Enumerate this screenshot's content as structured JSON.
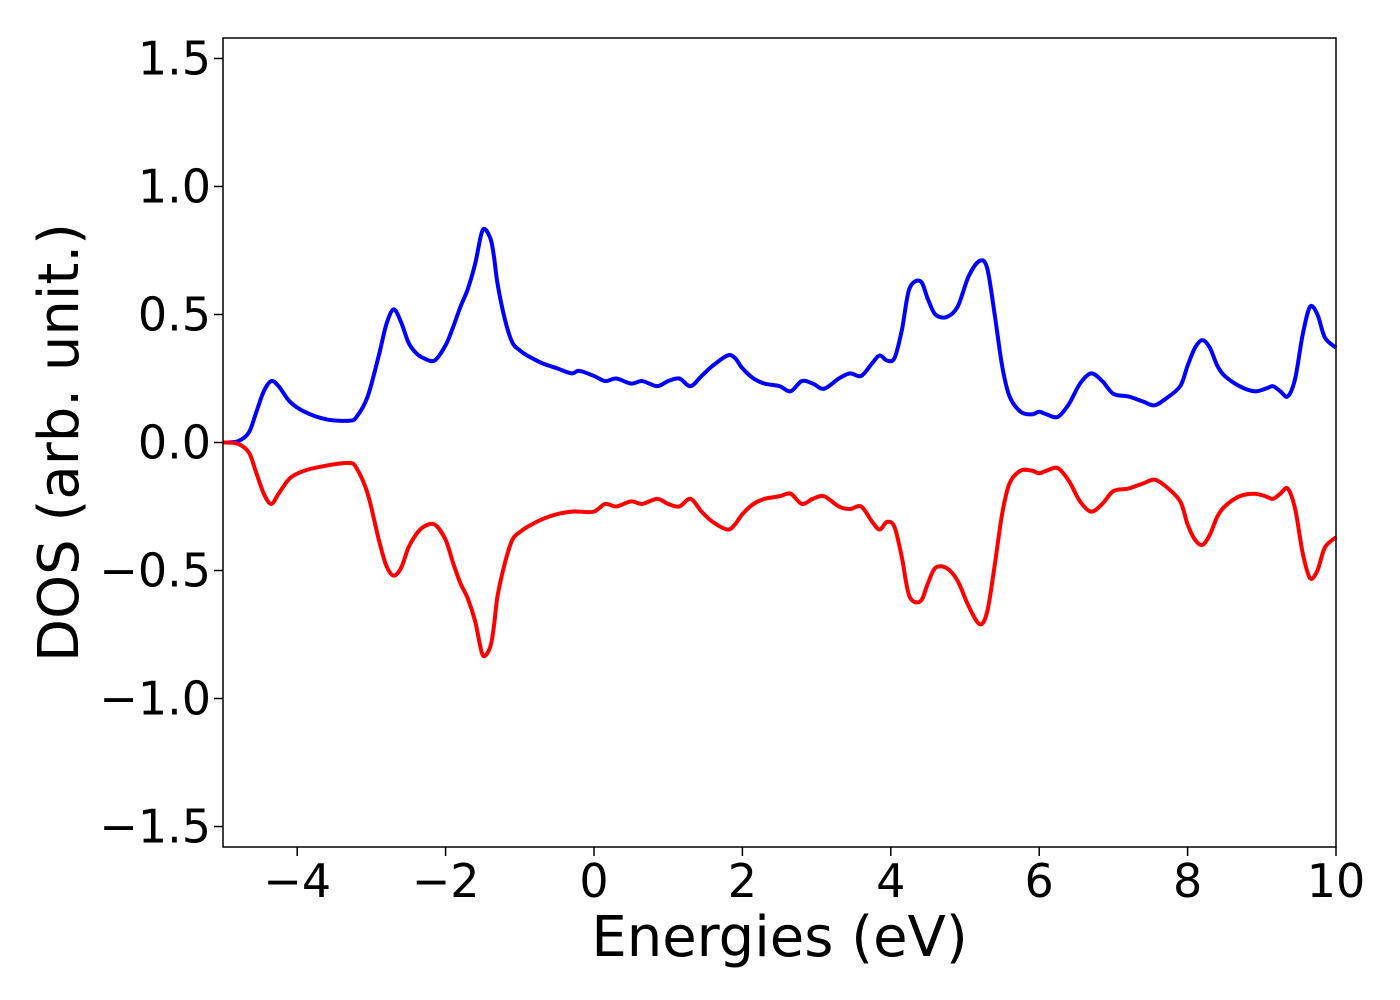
{
  "chart_data": {
    "type": "line",
    "xlabel": "Energies (eV)",
    "ylabel": "DOS (arb. unit.)",
    "xlim": [
      -5,
      10
    ],
    "ylim": [
      -1.58,
      1.58
    ],
    "grid": false,
    "xticks": [
      -4,
      -2,
      0,
      2,
      4,
      6,
      8,
      10
    ],
    "xtick_labels": [
      "−4",
      "−2",
      "0",
      "2",
      "4",
      "6",
      "8",
      "10"
    ],
    "yticks": [
      1.5,
      1.0,
      0.5,
      0.0,
      -0.5,
      -1.0,
      -1.5
    ],
    "ytick_labels": [
      "1.5",
      "1.0",
      "0.5",
      "0.0",
      "−0.5",
      "−1.0",
      "−1.5"
    ],
    "series": [
      {
        "color": "#0000ff",
        "x": [
          -5.0,
          -4.8,
          -4.65,
          -4.55,
          -4.45,
          -4.35,
          -4.25,
          -4.1,
          -3.9,
          -3.6,
          -3.3,
          -3.2,
          -3.05,
          -2.9,
          -2.8,
          -2.7,
          -2.6,
          -2.5,
          -2.4,
          -2.3,
          -2.15,
          -2.0,
          -1.9,
          -1.8,
          -1.7,
          -1.6,
          -1.5,
          -1.4,
          -1.35,
          -1.3,
          -1.2,
          -1.1,
          -1.0,
          -0.9,
          -0.7,
          -0.5,
          -0.3,
          -0.2,
          0.0,
          0.15,
          0.3,
          0.5,
          0.65,
          0.85,
          1.0,
          1.15,
          1.3,
          1.45,
          1.6,
          1.8,
          1.9,
          2.0,
          2.15,
          2.3,
          2.5,
          2.65,
          2.8,
          2.95,
          3.1,
          3.3,
          3.45,
          3.6,
          3.75,
          3.85,
          3.95,
          4.05,
          4.15,
          4.25,
          4.4,
          4.5,
          4.6,
          4.75,
          4.9,
          5.05,
          5.2,
          5.3,
          5.4,
          5.5,
          5.6,
          5.75,
          5.9,
          6.0,
          6.1,
          6.25,
          6.4,
          6.55,
          6.7,
          6.85,
          7.0,
          7.2,
          7.4,
          7.55,
          7.7,
          7.9,
          8.0,
          8.1,
          8.2,
          8.3,
          8.4,
          8.5,
          8.7,
          8.9,
          9.05,
          9.15,
          9.25,
          9.35,
          9.45,
          9.55,
          9.65,
          9.75,
          9.85,
          10.0
        ],
        "y": [
          0.0,
          0.005,
          0.04,
          0.12,
          0.2,
          0.24,
          0.22,
          0.16,
          0.12,
          0.09,
          0.085,
          0.1,
          0.18,
          0.34,
          0.46,
          0.52,
          0.47,
          0.39,
          0.35,
          0.33,
          0.32,
          0.38,
          0.45,
          0.53,
          0.6,
          0.7,
          0.83,
          0.8,
          0.73,
          0.62,
          0.48,
          0.39,
          0.36,
          0.34,
          0.31,
          0.29,
          0.27,
          0.28,
          0.26,
          0.24,
          0.25,
          0.23,
          0.24,
          0.22,
          0.24,
          0.25,
          0.22,
          0.26,
          0.3,
          0.34,
          0.33,
          0.29,
          0.25,
          0.23,
          0.22,
          0.2,
          0.24,
          0.23,
          0.21,
          0.25,
          0.27,
          0.26,
          0.31,
          0.34,
          0.32,
          0.33,
          0.44,
          0.6,
          0.63,
          0.56,
          0.5,
          0.49,
          0.53,
          0.65,
          0.71,
          0.68,
          0.5,
          0.3,
          0.18,
          0.12,
          0.11,
          0.12,
          0.11,
          0.1,
          0.15,
          0.23,
          0.27,
          0.24,
          0.19,
          0.18,
          0.16,
          0.145,
          0.17,
          0.22,
          0.3,
          0.37,
          0.4,
          0.37,
          0.3,
          0.26,
          0.22,
          0.2,
          0.21,
          0.22,
          0.2,
          0.18,
          0.25,
          0.42,
          0.53,
          0.5,
          0.41,
          0.37
        ]
      },
      {
        "color": "#ff0000",
        "x": [
          -5.0,
          -4.8,
          -4.65,
          -4.55,
          -4.45,
          -4.35,
          -4.25,
          -4.1,
          -3.9,
          -3.6,
          -3.3,
          -3.2,
          -3.05,
          -2.9,
          -2.8,
          -2.7,
          -2.6,
          -2.5,
          -2.4,
          -2.3,
          -2.15,
          -2.0,
          -1.9,
          -1.8,
          -1.7,
          -1.6,
          -1.5,
          -1.4,
          -1.35,
          -1.3,
          -1.2,
          -1.1,
          -1.0,
          -0.9,
          -0.7,
          -0.5,
          -0.3,
          -0.2,
          0.0,
          0.15,
          0.3,
          0.5,
          0.65,
          0.85,
          1.0,
          1.15,
          1.3,
          1.45,
          1.6,
          1.8,
          1.9,
          2.0,
          2.15,
          2.3,
          2.5,
          2.65,
          2.8,
          2.95,
          3.1,
          3.3,
          3.45,
          3.6,
          3.75,
          3.85,
          3.95,
          4.05,
          4.15,
          4.25,
          4.4,
          4.5,
          4.6,
          4.75,
          4.9,
          5.05,
          5.2,
          5.3,
          5.4,
          5.5,
          5.6,
          5.75,
          5.9,
          6.0,
          6.1,
          6.25,
          6.4,
          6.55,
          6.7,
          6.85,
          7.0,
          7.2,
          7.4,
          7.55,
          7.7,
          7.9,
          8.0,
          8.1,
          8.2,
          8.3,
          8.4,
          8.5,
          8.7,
          8.9,
          9.05,
          9.15,
          9.25,
          9.35,
          9.45,
          9.55,
          9.65,
          9.75,
          9.85,
          10.0
        ],
        "y": [
          0.0,
          -0.005,
          -0.04,
          -0.12,
          -0.2,
          -0.24,
          -0.2,
          -0.14,
          -0.11,
          -0.09,
          -0.08,
          -0.1,
          -0.2,
          -0.38,
          -0.48,
          -0.52,
          -0.49,
          -0.41,
          -0.36,
          -0.33,
          -0.32,
          -0.38,
          -0.47,
          -0.55,
          -0.61,
          -0.7,
          -0.83,
          -0.8,
          -0.72,
          -0.6,
          -0.47,
          -0.38,
          -0.35,
          -0.33,
          -0.3,
          -0.28,
          -0.27,
          -0.27,
          -0.27,
          -0.24,
          -0.25,
          -0.23,
          -0.24,
          -0.22,
          -0.24,
          -0.25,
          -0.22,
          -0.27,
          -0.31,
          -0.34,
          -0.32,
          -0.28,
          -0.24,
          -0.22,
          -0.21,
          -0.2,
          -0.24,
          -0.22,
          -0.21,
          -0.25,
          -0.26,
          -0.25,
          -0.31,
          -0.34,
          -0.31,
          -0.33,
          -0.45,
          -0.6,
          -0.62,
          -0.55,
          -0.49,
          -0.49,
          -0.54,
          -0.64,
          -0.71,
          -0.66,
          -0.48,
          -0.28,
          -0.16,
          -0.11,
          -0.11,
          -0.12,
          -0.11,
          -0.1,
          -0.15,
          -0.23,
          -0.27,
          -0.24,
          -0.19,
          -0.18,
          -0.16,
          -0.145,
          -0.17,
          -0.23,
          -0.32,
          -0.38,
          -0.4,
          -0.36,
          -0.29,
          -0.25,
          -0.21,
          -0.2,
          -0.21,
          -0.22,
          -0.2,
          -0.18,
          -0.26,
          -0.43,
          -0.53,
          -0.5,
          -0.41,
          -0.37
        ]
      }
    ]
  }
}
